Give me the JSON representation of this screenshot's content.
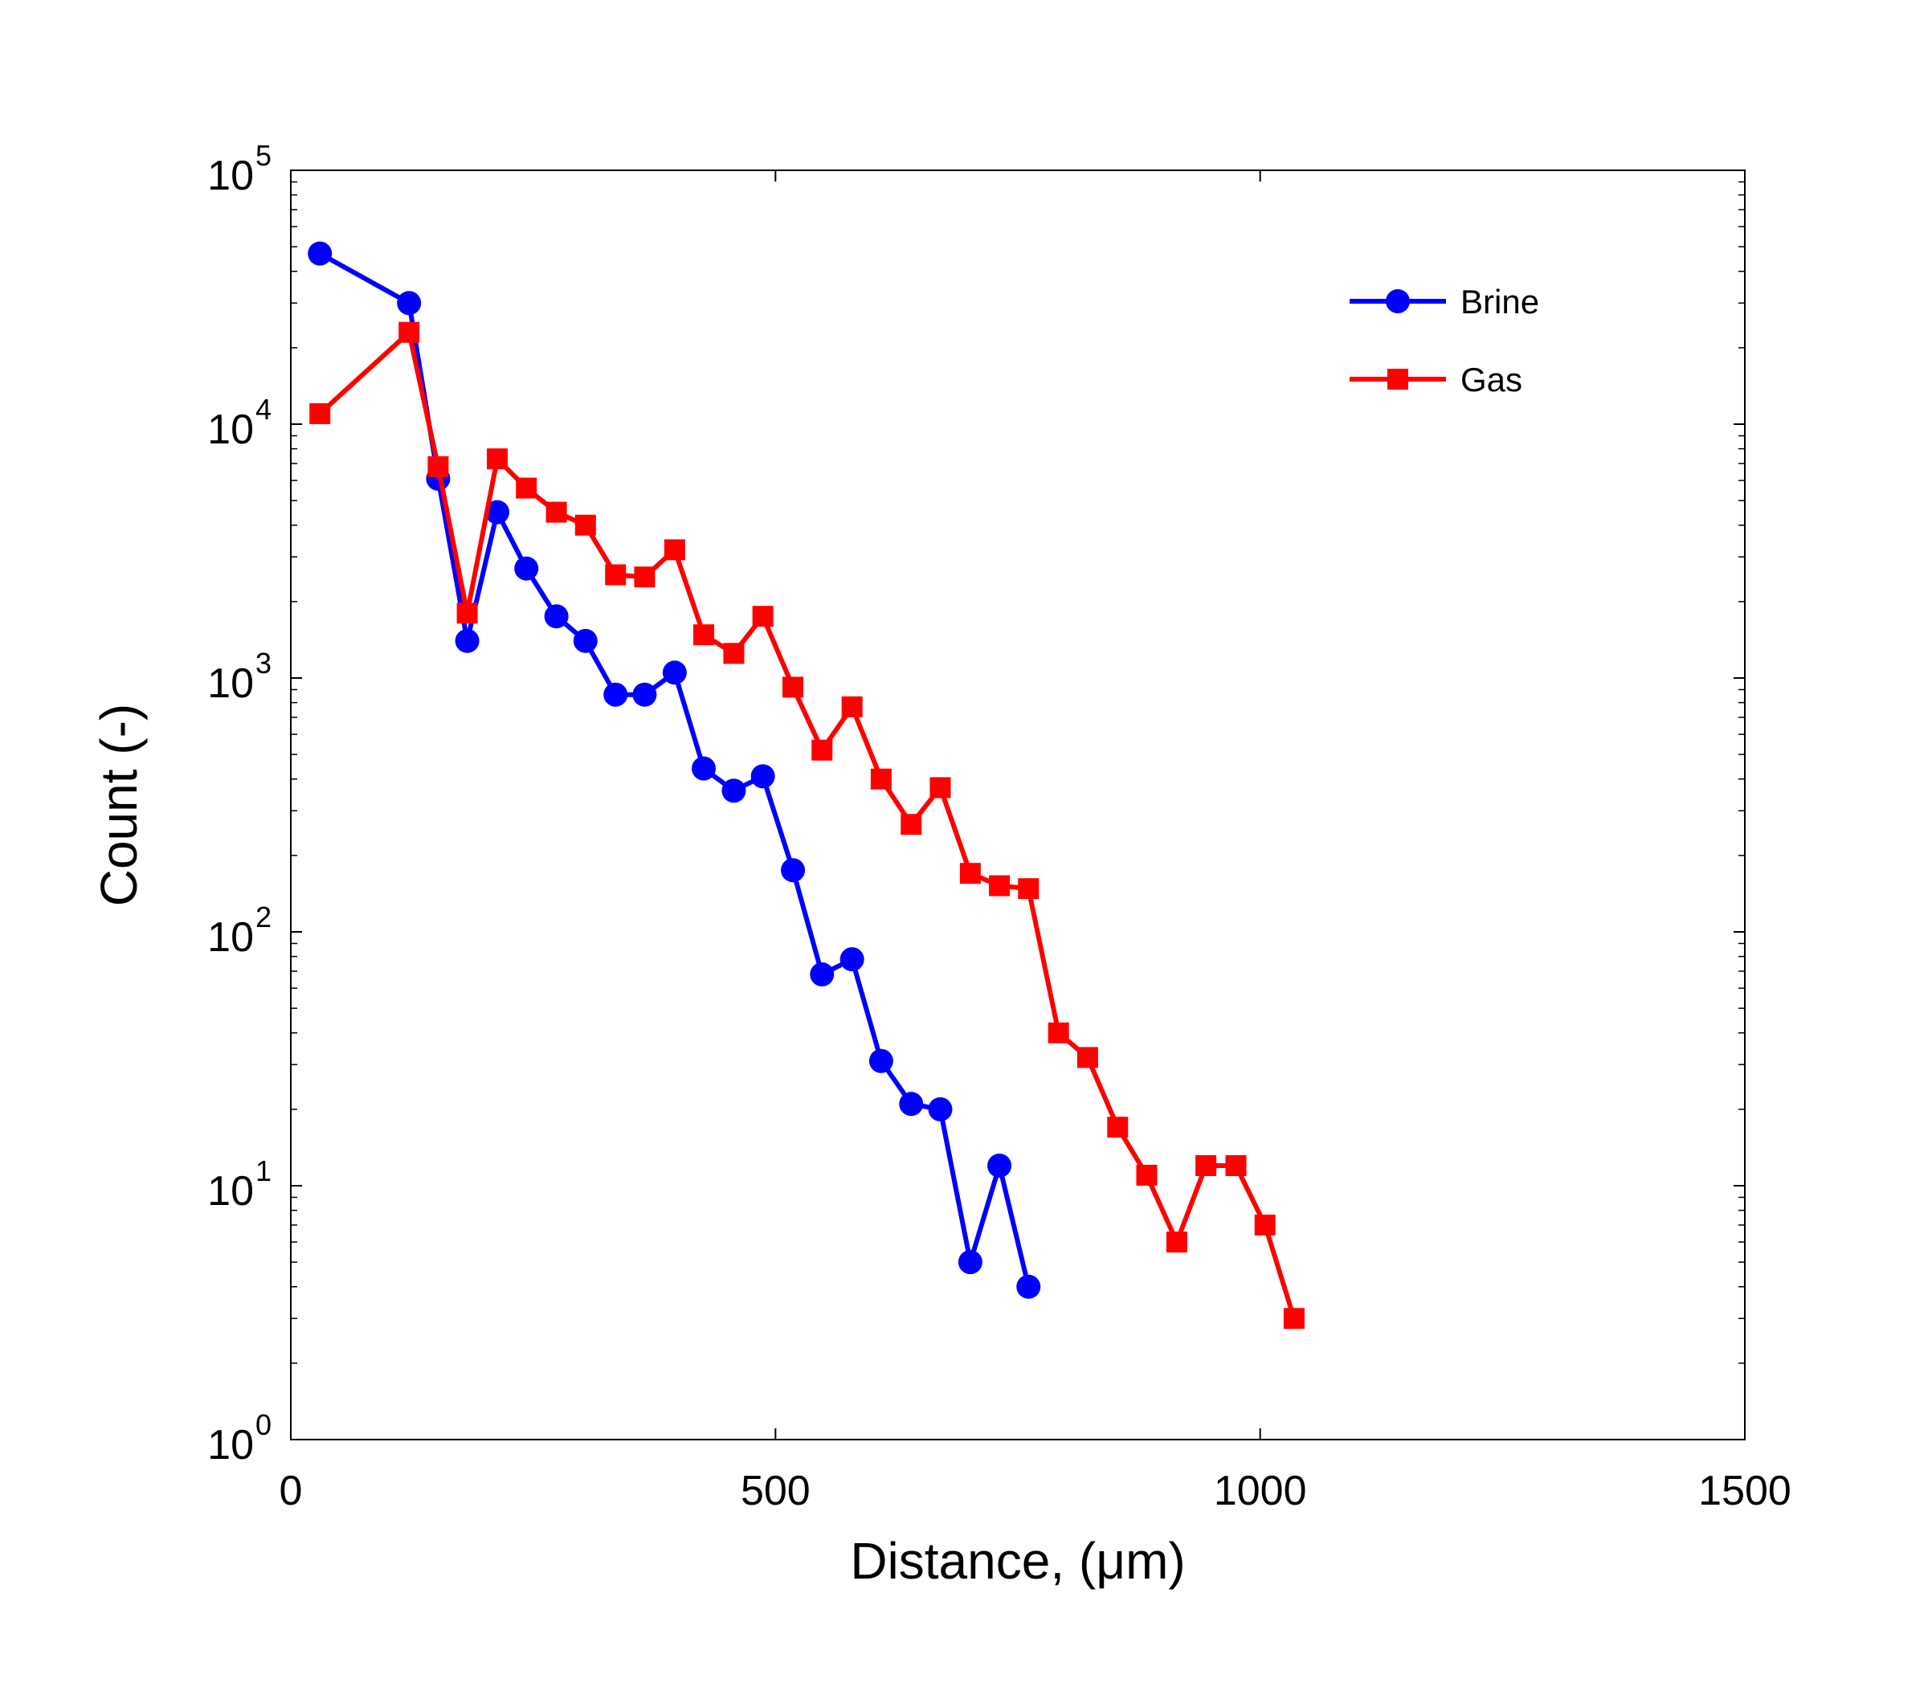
{
  "chart_data": {
    "type": "line",
    "title": "",
    "xlabel": "Distance, (μm)",
    "ylabel": "Count (-)",
    "xscale": "linear",
    "yscale": "log",
    "xlim": [
      0,
      1500
    ],
    "ylim": [
      1,
      100000
    ],
    "xticks": [
      0,
      500,
      1000,
      1500
    ],
    "xtick_labels": [
      "0",
      "500",
      "1000",
      "1500"
    ],
    "yticks": [
      1,
      10,
      100,
      1000,
      10000,
      100000
    ],
    "ytick_labels": [
      {
        "base": "10",
        "exp": "0"
      },
      {
        "base": "10",
        "exp": "1"
      },
      {
        "base": "10",
        "exp": "2"
      },
      {
        "base": "10",
        "exp": "3"
      },
      {
        "base": "10",
        "exp": "4"
      },
      {
        "base": "10",
        "exp": "5"
      }
    ],
    "grid": false,
    "legend_position": "top-right",
    "series": [
      {
        "name": "Brine",
        "color": "#0000ff",
        "marker": "circle",
        "x": [
          30,
          122,
          152,
          182,
          213,
          243,
          274,
          304,
          335,
          365,
          396,
          426,
          457,
          487,
          518,
          548,
          579,
          609,
          640,
          670,
          701,
          731,
          761
        ],
        "y": [
          47000,
          30000,
          6100,
          1400,
          4500,
          2700,
          1750,
          1400,
          860,
          860,
          1050,
          440,
          360,
          410,
          175,
          68,
          78,
          31,
          21,
          20,
          5,
          12,
          4
        ]
      },
      {
        "name": "Gas",
        "color": "#ff0000",
        "marker": "square",
        "x": [
          30,
          122,
          152,
          182,
          213,
          243,
          274,
          304,
          335,
          365,
          396,
          426,
          457,
          487,
          518,
          548,
          579,
          609,
          640,
          670,
          701,
          731,
          761,
          792,
          822,
          853,
          883,
          914,
          944,
          975,
          1005,
          1035
        ],
        "y": [
          11000,
          23000,
          6800,
          1800,
          7300,
          5600,
          4500,
          4000,
          2550,
          2500,
          3200,
          1480,
          1250,
          1750,
          920,
          520,
          770,
          400,
          265,
          370,
          170,
          152,
          148,
          40,
          32,
          17,
          11,
          6,
          12,
          12,
          7,
          3
        ]
      }
    ]
  }
}
